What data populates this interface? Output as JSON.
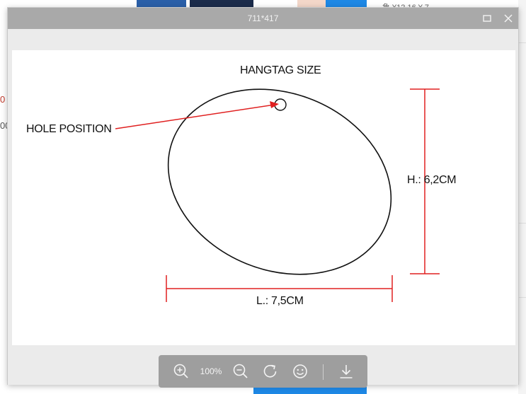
{
  "background": {
    "top_text": "鲁  ¥12.16  ¥ 7",
    "left_fragment_1": "0 !",
    "left_fragment_2": "00"
  },
  "viewer": {
    "title": "711*417",
    "maximize_icon": "maximize-icon",
    "close_icon": "close-icon"
  },
  "image": {
    "title": "HANGTAG SIZE",
    "hole_label": "HOLE POSITION",
    "height_label": "H.: 6,2CM",
    "length_label": "L.: 7,5CM",
    "line_color": "#e02020"
  },
  "toolbar": {
    "zoom_level": "100%",
    "buttons": [
      "zoom-in-icon",
      "zoom-out-icon",
      "rotate-icon",
      "smiley-icon",
      "download-icon"
    ]
  }
}
